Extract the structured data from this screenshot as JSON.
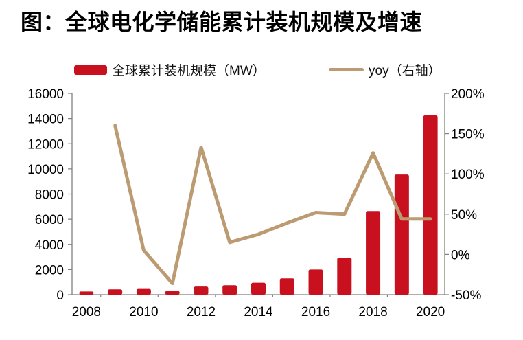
{
  "title": "图：全球电化学储能累计装机规模及增速",
  "legend": [
    {
      "label": "全球累计装机规模（MW）",
      "type": "bar",
      "color": "#C8101E"
    },
    {
      "label": "yoy（右轴）",
      "type": "line",
      "color": "#BC9B72"
    }
  ],
  "colors": {
    "bar": "#C8101E",
    "line": "#BC9B72",
    "axis": "#7F7F7F",
    "text": "#000000",
    "background": "#FFFFFF"
  },
  "chart_data": {
    "type": "bar+line",
    "title": "图：全球电化学储能累计装机规模及增速",
    "categories": [
      "2008",
      "2009",
      "2010",
      "2011",
      "2012",
      "2013",
      "2014",
      "2015",
      "2016",
      "2017",
      "2018",
      "2019",
      "2020"
    ],
    "series": [
      {
        "name": "全球累计装机规模（MW）",
        "chart_type": "bar",
        "axis": "left",
        "unit": "MW",
        "color": "#C8101E",
        "values": [
          250,
          420,
          460,
          300,
          650,
          750,
          950,
          1300,
          2000,
          2950,
          6650,
          9550,
          14250
        ]
      },
      {
        "name": "yoy（右轴）",
        "chart_type": "line",
        "axis": "right",
        "unit": "%",
        "color": "#BC9B72",
        "values": [
          null,
          160,
          5,
          -36,
          133,
          15,
          25,
          39,
          52,
          50,
          126,
          44,
          44
        ]
      }
    ],
    "left_axis": {
      "min": 0,
      "max": 16000,
      "ticks": [
        0,
        2000,
        4000,
        6000,
        8000,
        10000,
        12000,
        14000,
        16000
      ]
    },
    "right_axis": {
      "min": -50,
      "max": 200,
      "ticks": [
        200,
        150,
        100,
        50,
        0,
        -50
      ],
      "format": "percent"
    },
    "x_tick_labels": [
      "2008",
      "2010",
      "2012",
      "2014",
      "2016",
      "2018",
      "2020"
    ],
    "grid": false,
    "legend_position": "top"
  }
}
